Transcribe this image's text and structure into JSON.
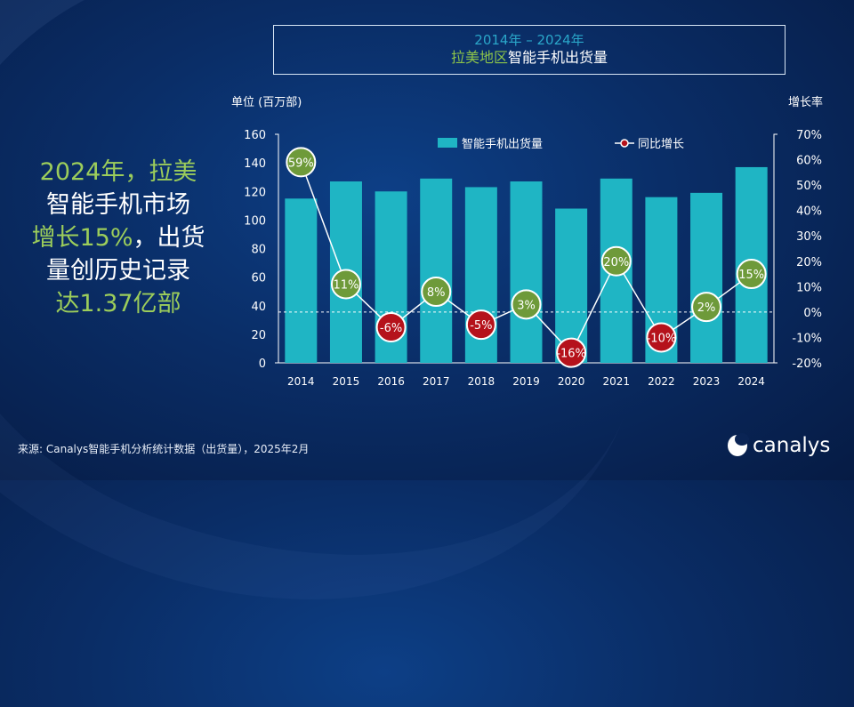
{
  "title_box": {
    "line1": "2014年 – 2024年",
    "line2_highlight": "拉美地区",
    "line2_rest": "智能手机出货量"
  },
  "headline": {
    "part1": "2024年，拉美",
    "part2": "智能手机市场",
    "part3_highlight": "增长15%",
    "part3_rest": "，出货",
    "part4": "量创历史记录",
    "part5": "达1.37亿部"
  },
  "footer": {
    "source": "来源: Canalys智能手机分析统计数据（出货量），2025年2月"
  },
  "logo": {
    "text": "canalys"
  },
  "colors": {
    "bar": "#1fb5c4",
    "growth_positive": "#6e9a3a",
    "growth_negative": "#b5121b",
    "line": "#ffffff",
    "highlight_green": "#9ccd5b"
  },
  "chart_data": {
    "type": "bar",
    "categories": [
      "2014",
      "2015",
      "2016",
      "2017",
      "2018",
      "2019",
      "2020",
      "2021",
      "2022",
      "2023",
      "2024"
    ],
    "series": [
      {
        "name": "智能手机出货量",
        "type": "bar",
        "axis": "left",
        "values": [
          115,
          127,
          120,
          129,
          123,
          127,
          108,
          129,
          116,
          119,
          137
        ]
      },
      {
        "name": "同比增长",
        "type": "line",
        "axis": "right",
        "values": [
          59,
          11,
          -6,
          8,
          -5,
          3,
          -16,
          20,
          -10,
          2,
          15
        ],
        "labels": [
          "59%",
          "11%",
          "-6%",
          "8%",
          "-5%",
          "3%",
          "-16%",
          "20%",
          "-10%",
          "2%",
          "15%"
        ]
      }
    ],
    "ylabel": "单位 (百万部)",
    "y2label": "增长率",
    "ylim": [
      0,
      160
    ],
    "yticks": [
      "0",
      "20",
      "40",
      "60",
      "80",
      "100",
      "120",
      "140",
      "160"
    ],
    "y2lim": [
      -20,
      70
    ],
    "y2ticks": [
      "-20%",
      "-10%",
      "0%",
      "10%",
      "20%",
      "30%",
      "40%",
      "50%",
      "60%",
      "70%"
    ],
    "legend_position": "top",
    "zero_growth_reference_line": true
  }
}
